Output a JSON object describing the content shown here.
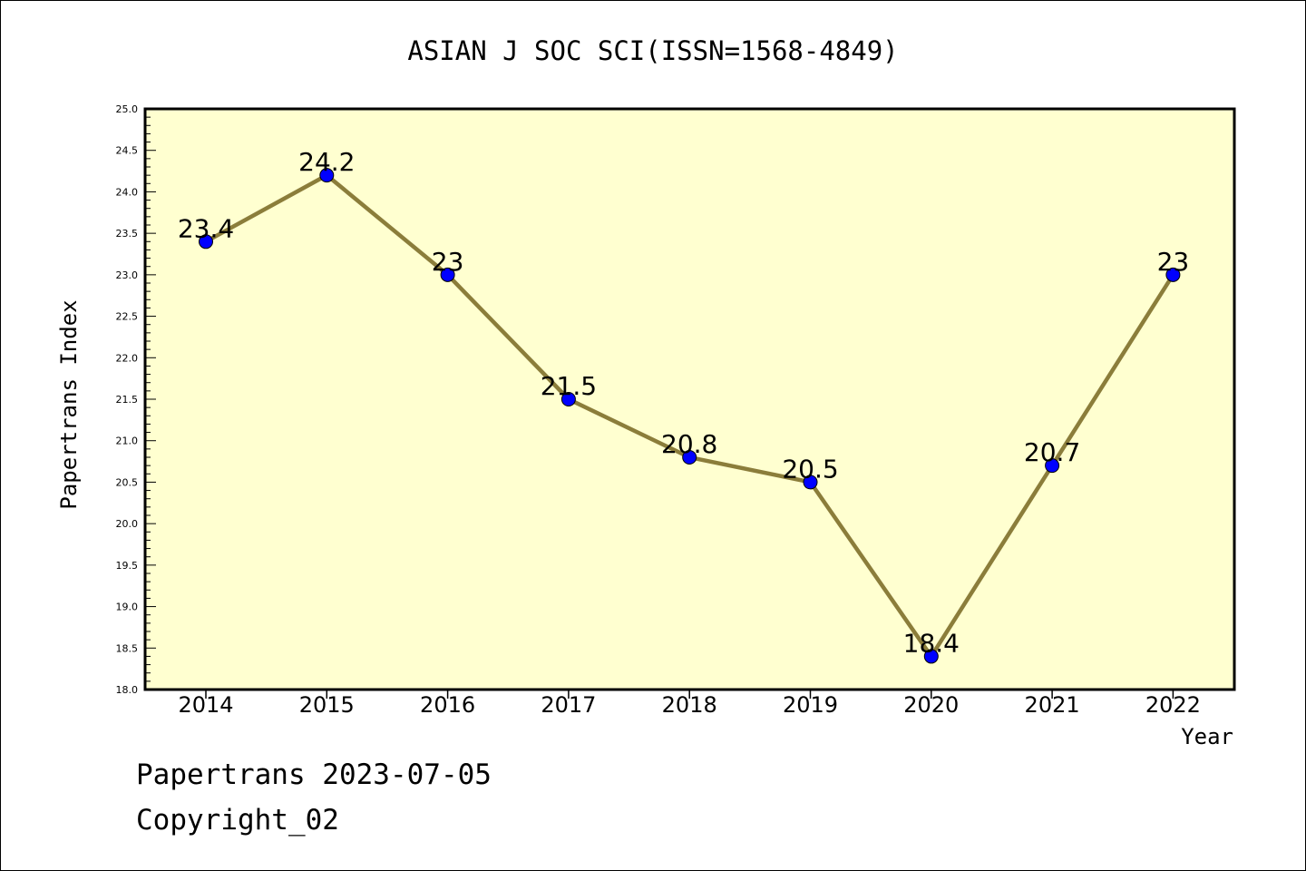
{
  "chart_data": {
    "type": "line",
    "title": "ASIAN J SOC SCI(ISSN=1568-4849)",
    "xlabel": "Year",
    "ylabel": "Papertrans Index",
    "categories": [
      "2014",
      "2015",
      "2016",
      "2017",
      "2018",
      "2019",
      "2020",
      "2021",
      "2022"
    ],
    "series": [
      {
        "values": [
          23.4,
          24.2,
          23.0,
          21.5,
          20.8,
          20.5,
          18.4,
          20.7,
          23.0
        ],
        "labels": [
          "23.4",
          "24.2",
          "23",
          "21.5",
          "20.8",
          "20.5",
          "18.4",
          "20.7",
          "23"
        ]
      }
    ],
    "ylim": [
      18.0,
      25.0
    ],
    "yticks": [
      "18.0",
      "18.5",
      "19.0",
      "19.5",
      "20.0",
      "20.5",
      "21.0",
      "21.5",
      "22.0",
      "22.5",
      "23.0",
      "23.5",
      "24.0",
      "24.5",
      "25.0"
    ],
    "grid": false,
    "colors": {
      "plot_background": "#ffffd0",
      "line": "#8b7d3a",
      "marker": "#0000ff",
      "frame": "#000000"
    }
  },
  "footer": {
    "line1": "Papertrans 2023-07-05",
    "line2": "Copyright_02"
  }
}
